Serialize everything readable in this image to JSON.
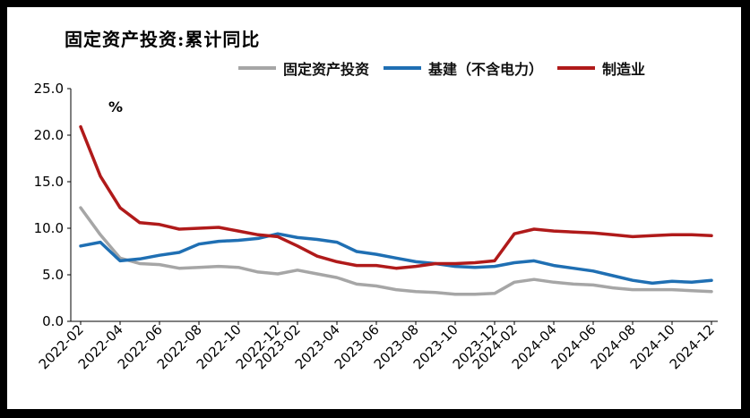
{
  "chart_data": {
    "type": "line",
    "title": "固定资产投资:累计同比",
    "unit_label": "%",
    "ylim": [
      0,
      25
    ],
    "yticks": [
      "0.0",
      "5.0",
      "10.0",
      "15.0",
      "20.0",
      "25.0"
    ],
    "x": [
      "2022-02",
      "2022-03",
      "2022-04",
      "2022-05",
      "2022-06",
      "2022-07",
      "2022-08",
      "2022-09",
      "2022-10",
      "2022-11",
      "2022-12",
      "2023-02",
      "2023-03",
      "2023-04",
      "2023-05",
      "2023-06",
      "2023-07",
      "2023-08",
      "2023-09",
      "2023-10",
      "2023-11",
      "2023-12",
      "2024-02",
      "2024-03",
      "2024-04",
      "2024-05",
      "2024-06",
      "2024-07",
      "2024-08",
      "2024-09",
      "2024-10",
      "2024-11",
      "2024-12"
    ],
    "xtick_labels": [
      "2022-02",
      "2022-04",
      "2022-06",
      "2022-08",
      "2022-10",
      "2022-12",
      "2023-02",
      "2023-04",
      "2023-06",
      "2023-08",
      "2023-10",
      "2023-12",
      "2024-02",
      "2024-04",
      "2024-06",
      "2024-08",
      "2024-10",
      "2024-12"
    ],
    "series": [
      {
        "name": "固定资产投资",
        "color": "#a6a6a6",
        "values": [
          12.2,
          9.3,
          6.8,
          6.2,
          6.1,
          5.7,
          5.8,
          5.9,
          5.8,
          5.3,
          5.1,
          5.5,
          5.1,
          4.7,
          4.0,
          3.8,
          3.4,
          3.2,
          3.1,
          2.9,
          2.9,
          3.0,
          4.2,
          4.5,
          4.2,
          4.0,
          3.9,
          3.6,
          3.4,
          3.4,
          3.4,
          3.3,
          3.2
        ]
      },
      {
        "name": "基建（不含电力）",
        "color": "#1f6fb3",
        "values": [
          8.1,
          8.5,
          6.5,
          6.7,
          7.1,
          7.4,
          8.3,
          8.6,
          8.7,
          8.9,
          9.4,
          9.0,
          8.8,
          8.5,
          7.5,
          7.2,
          6.8,
          6.4,
          6.2,
          5.9,
          5.8,
          5.9,
          6.3,
          6.5,
          6.0,
          5.7,
          5.4,
          4.9,
          4.4,
          4.1,
          4.3,
          4.2,
          4.4
        ]
      },
      {
        "name": "制造业",
        "color": "#b01a1a",
        "values": [
          20.9,
          15.6,
          12.2,
          10.6,
          10.4,
          9.9,
          10.0,
          10.1,
          9.7,
          9.3,
          9.1,
          8.1,
          7.0,
          6.4,
          6.0,
          6.0,
          5.7,
          5.9,
          6.2,
          6.2,
          6.3,
          6.5,
          9.4,
          9.9,
          9.7,
          9.6,
          9.5,
          9.3,
          9.1,
          9.2,
          9.3,
          9.3,
          9.2
        ]
      }
    ]
  }
}
